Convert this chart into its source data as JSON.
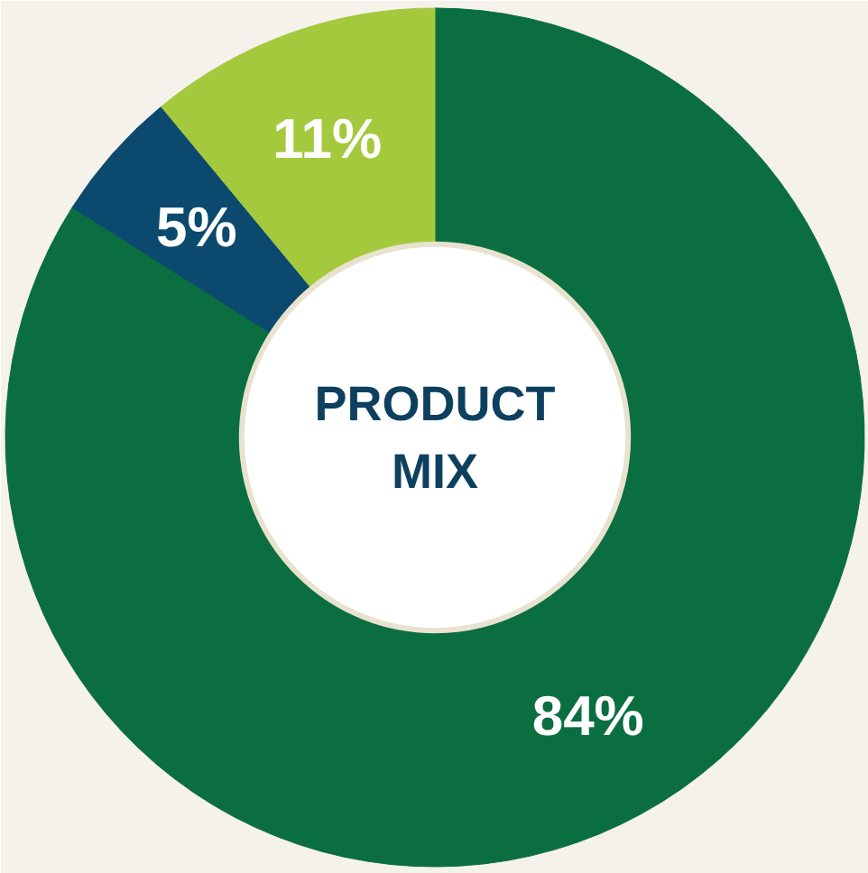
{
  "chart_data": {
    "type": "donut",
    "title": "PRODUCT MIX",
    "categories": [
      null,
      null,
      null
    ],
    "values": [
      84,
      5,
      11
    ],
    "colors": [
      "#0b6e40",
      "#0b4a6e",
      "#a5c93d"
    ],
    "value_labels": [
      "84%",
      "5%",
      "11%"
    ]
  }
}
